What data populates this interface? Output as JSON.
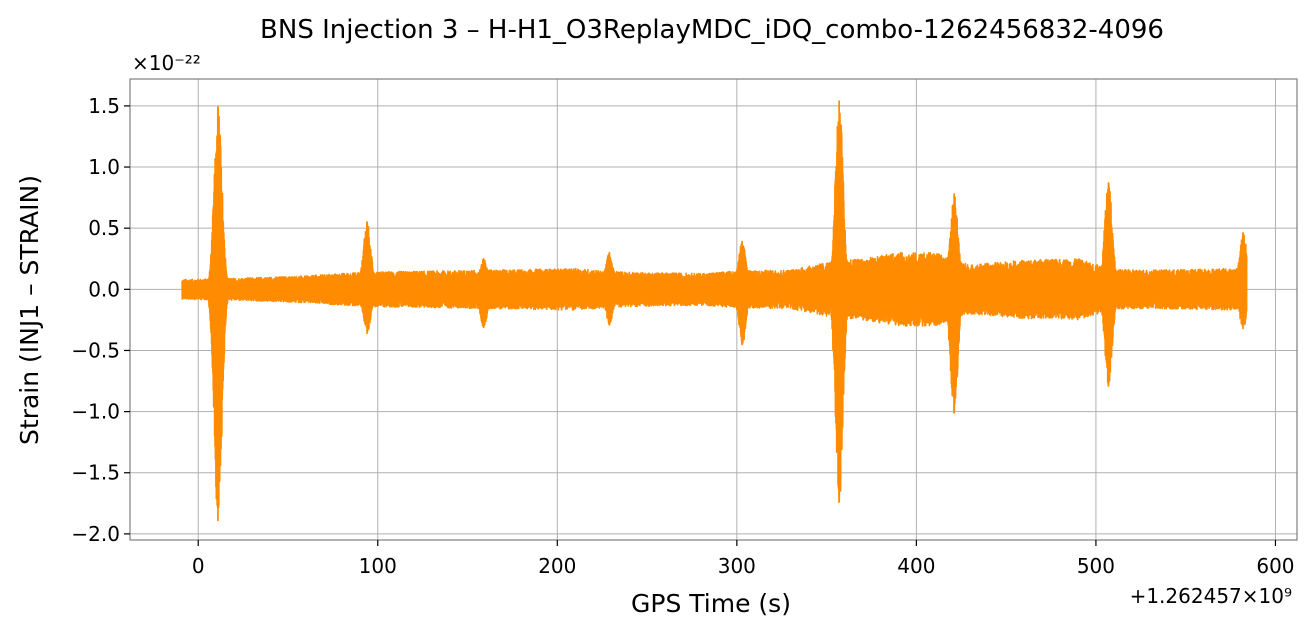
{
  "chart_data": {
    "type": "line",
    "title": "BNS Injection 3 – H-H1_O3ReplayMDC_iDQ_combo-1262456832-4096",
    "xlabel": "GPS Time (s)",
    "ylabel": "Strain (INJ1 – STRAIN)",
    "x_offset_label": "+1.262457×10⁹",
    "y_scale_label": "×10⁻²²",
    "xlim": [
      -38,
      612
    ],
    "ylim": [
      -2.05,
      1.72
    ],
    "x_ticks": [
      0,
      100,
      200,
      300,
      400,
      500,
      600
    ],
    "y_ticks": [
      -2.0,
      -1.5,
      -1.0,
      -0.5,
      0.0,
      0.5,
      1.0,
      1.5
    ],
    "x_tick_labels": [
      "0",
      "100",
      "200",
      "300",
      "400",
      "500",
      "600"
    ],
    "y_tick_labels": [
      "−2.0",
      "−1.5",
      "−1.0",
      "−0.5",
      "0.0",
      "0.5",
      "1.0",
      "1.5"
    ],
    "grid": true,
    "series": [
      {
        "color": "#ff8c00",
        "x_range": [
          -9,
          584
        ],
        "baseline_envelope": [
          [
            -9,
            0.08
          ],
          [
            20,
            0.09
          ],
          [
            60,
            0.11
          ],
          [
            90,
            0.14
          ],
          [
            130,
            0.15
          ],
          [
            170,
            0.16
          ],
          [
            210,
            0.17
          ],
          [
            240,
            0.14
          ],
          [
            280,
            0.13
          ],
          [
            300,
            0.15
          ],
          [
            330,
            0.16
          ],
          [
            350,
            0.22
          ],
          [
            370,
            0.25
          ],
          [
            390,
            0.3
          ],
          [
            410,
            0.3
          ],
          [
            430,
            0.2
          ],
          [
            460,
            0.24
          ],
          [
            490,
            0.25
          ],
          [
            510,
            0.16
          ],
          [
            540,
            0.16
          ],
          [
            570,
            0.17
          ],
          [
            584,
            0.17
          ]
        ],
        "glitches": [
          {
            "x": 11,
            "ymax": 1.49,
            "ymin": -1.89
          },
          {
            "x": 94,
            "ymax": 0.55,
            "ymin": -0.36
          },
          {
            "x": 159,
            "ymax": 0.25,
            "ymin": -0.31
          },
          {
            "x": 229,
            "ymax": 0.3,
            "ymin": -0.29
          },
          {
            "x": 303,
            "ymax": 0.39,
            "ymin": -0.45
          },
          {
            "x": 357,
            "ymax": 1.54,
            "ymin": -1.74
          },
          {
            "x": 421,
            "ymax": 0.78,
            "ymin": -1.01
          },
          {
            "x": 507,
            "ymax": 0.87,
            "ymin": -0.79
          },
          {
            "x": 582,
            "ymax": 0.46,
            "ymin": -0.32
          }
        ]
      }
    ]
  }
}
